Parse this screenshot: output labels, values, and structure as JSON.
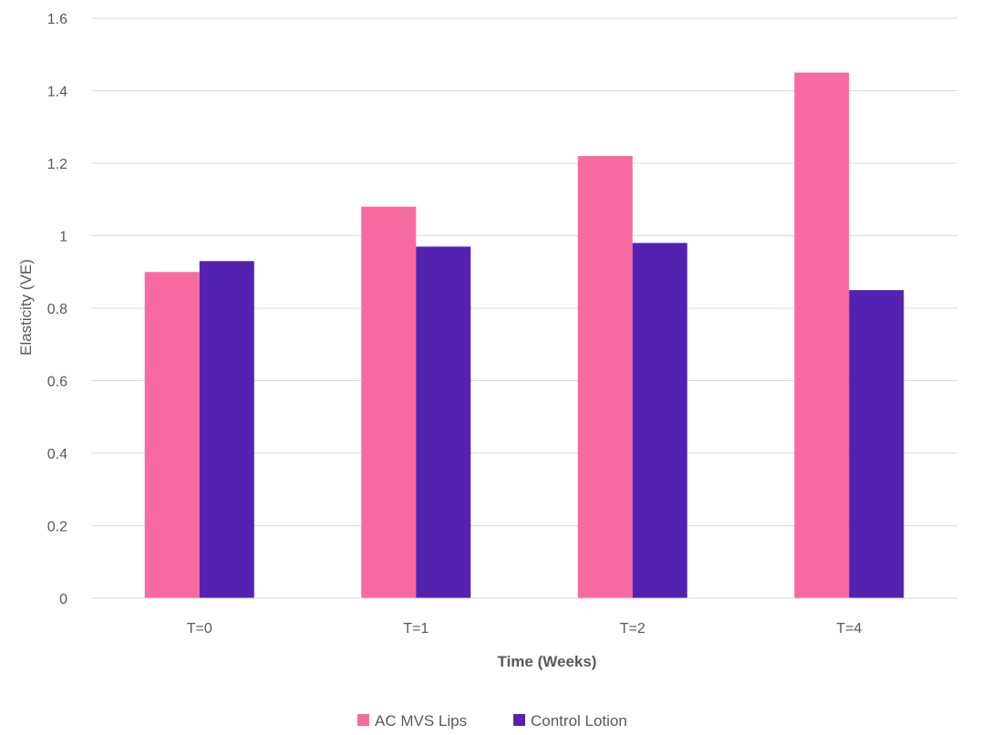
{
  "chart_data": {
    "type": "bar",
    "title": "",
    "xlabel": "Time (Weeks)",
    "ylabel": "Elasticity (VE)",
    "categories": [
      "T=0",
      "T=1",
      "T=2",
      "T=4"
    ],
    "series": [
      {
        "name": "AC MVS Lips",
        "values": [
          0.9,
          1.08,
          1.22,
          1.45
        ],
        "color": "#f76aa0"
      },
      {
        "name": "Control Lotion",
        "values": [
          0.93,
          0.97,
          0.98,
          0.85
        ],
        "color": "#5322b0"
      }
    ],
    "ylim": [
      0,
      1.6
    ],
    "yticks": [
      "0",
      "0.2",
      "0.4",
      "0.6",
      "0.8",
      "1",
      "1.2",
      "1.4",
      "1.6"
    ],
    "grid": true,
    "legend_position": "bottom-center"
  }
}
